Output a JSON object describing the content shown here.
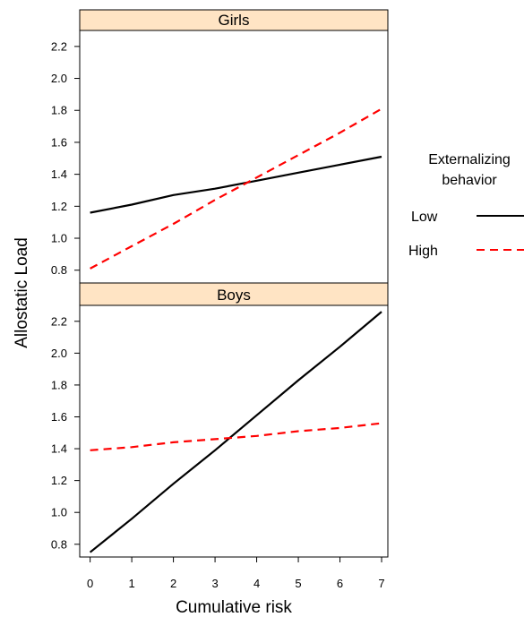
{
  "chart_data": {
    "type": "line",
    "xlabel": "Cumulative risk",
    "ylabel": "Allostatic Load",
    "x_ticks": [
      "0",
      "1",
      "2",
      "3",
      "4",
      "5",
      "6",
      "7"
    ],
    "y_ticks": [
      "0.8",
      "1.0",
      "1.2",
      "1.4",
      "1.6",
      "1.8",
      "2.0",
      "2.2"
    ],
    "xlim": [
      -0.25,
      7.15
    ],
    "ylim": [
      0.72,
      2.3
    ],
    "strip_color": "#ffe4c4",
    "legend": {
      "title_line1": "Externalizing",
      "title_line2": "behavior",
      "placement": "right",
      "entries": [
        {
          "label": "Low",
          "color": "#000000",
          "style": "solid"
        },
        {
          "label": "High",
          "color": "#ff0000",
          "style": "dashed"
        }
      ]
    },
    "panels": [
      {
        "strip": "Girls",
        "series": [
          {
            "name": "Low",
            "color": "#000000",
            "style": "solid",
            "x": [
              0,
              1,
              2,
              3,
              4,
              5,
              6,
              7
            ],
            "y": [
              1.16,
              1.21,
              1.27,
              1.31,
              1.36,
              1.41,
              1.46,
              1.51
            ]
          },
          {
            "name": "High",
            "color": "#ff0000",
            "style": "dashed",
            "x": [
              0,
              1,
              2,
              3,
              4,
              5,
              6,
              7
            ],
            "y": [
              0.81,
              0.95,
              1.09,
              1.24,
              1.38,
              1.52,
              1.66,
              1.81
            ]
          }
        ]
      },
      {
        "strip": "Boys",
        "series": [
          {
            "name": "Low",
            "color": "#000000",
            "style": "solid",
            "x": [
              0,
              1,
              2,
              3,
              4,
              5,
              6,
              7
            ],
            "y": [
              0.75,
              0.96,
              1.18,
              1.39,
              1.61,
              1.83,
              2.04,
              2.26
            ]
          },
          {
            "name": "High",
            "color": "#ff0000",
            "style": "dashed",
            "x": [
              0,
              1,
              2,
              3,
              4,
              5,
              6,
              7
            ],
            "y": [
              1.39,
              1.41,
              1.44,
              1.46,
              1.48,
              1.51,
              1.53,
              1.56
            ]
          }
        ]
      }
    ]
  }
}
